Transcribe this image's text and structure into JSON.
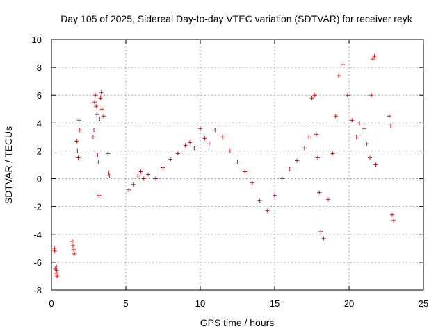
{
  "chart_data": {
    "type": "scatter",
    "title": "Day 105 of 2025, Sidereal Day-to-day VTEC variation (SDTVAR) for receiver reyk",
    "xlabel": "GPS time / hours",
    "ylabel": "SDTVAR / TECUs",
    "xlim": [
      0,
      25
    ],
    "ylim": [
      -8,
      10
    ],
    "x_ticks": [
      0,
      5,
      10,
      15,
      20,
      25
    ],
    "y_ticks": [
      -8,
      -6,
      -4,
      -2,
      0,
      2,
      4,
      6,
      8,
      10
    ],
    "x_tick_labels": [
      "0",
      "5",
      "10",
      "15",
      "20",
      "25"
    ],
    "y_tick_labels": [
      "-8",
      "-6",
      "-4",
      "-2",
      "0",
      "2",
      "4",
      "6",
      "8",
      "10"
    ],
    "grid": true,
    "marker": "+",
    "color": "#ff0000",
    "series": [
      {
        "name": "SDTVAR",
        "x": [
          0.2,
          0.22,
          0.25,
          0.3,
          0.33,
          0.36,
          0.38,
          1.4,
          1.45,
          1.5,
          1.55,
          1.7,
          1.75,
          1.8,
          1.85,
          1.9,
          2.8,
          2.85,
          2.9,
          2.95,
          3.0,
          3.05,
          3.1,
          3.15,
          3.2,
          3.25,
          3.3,
          3.35,
          3.4,
          3.5,
          3.8,
          3.85,
          3.9,
          5.2,
          5.5,
          5.8,
          6.0,
          6.2,
          6.5,
          7.0,
          7.5,
          8.0,
          8.5,
          9.0,
          9.3,
          9.6,
          10.0,
          10.3,
          10.6,
          11.0,
          11.5,
          12.0,
          12.5,
          13.0,
          13.5,
          14.0,
          14.5,
          15.0,
          15.5,
          16.0,
          16.5,
          17.0,
          17.3,
          17.5,
          17.7,
          17.8,
          17.9,
          18.0,
          18.1,
          18.3,
          18.6,
          18.9,
          19.1,
          19.3,
          19.6,
          19.9,
          20.2,
          20.5,
          20.7,
          21.0,
          21.2,
          21.4,
          21.5,
          21.6,
          21.7,
          21.8,
          22.7,
          22.8,
          22.9,
          23.0
        ],
        "y": [
          -5.0,
          -5.2,
          -6.5,
          -6.8,
          -6.3,
          -6.6,
          -7.0,
          -4.5,
          -4.8,
          -5.1,
          -5.4,
          2.7,
          2.0,
          1.5,
          4.2,
          3.5,
          3.0,
          3.5,
          5.5,
          6.0,
          5.2,
          4.6,
          1.7,
          1.2,
          -1.2,
          4.3,
          5.8,
          6.2,
          5.0,
          4.5,
          1.8,
          0.4,
          0.2,
          -0.8,
          -0.4,
          0.2,
          0.5,
          0.0,
          0.3,
          0.0,
          0.8,
          1.4,
          1.8,
          2.4,
          2.6,
          2.2,
          3.6,
          2.9,
          2.5,
          3.5,
          3.0,
          2.0,
          1.2,
          0.5,
          -0.3,
          -1.6,
          -2.3,
          -1.2,
          0.0,
          0.7,
          1.3,
          2.2,
          3.0,
          5.8,
          6.0,
          3.2,
          1.5,
          -1.0,
          -3.8,
          -4.3,
          -1.5,
          1.8,
          4.5,
          7.4,
          8.2,
          6.0,
          4.2,
          3.0,
          4.0,
          3.6,
          2.5,
          1.5,
          6.0,
          8.6,
          8.8,
          1.0,
          4.5,
          3.8,
          -2.6,
          -3.0
        ]
      }
    ]
  }
}
